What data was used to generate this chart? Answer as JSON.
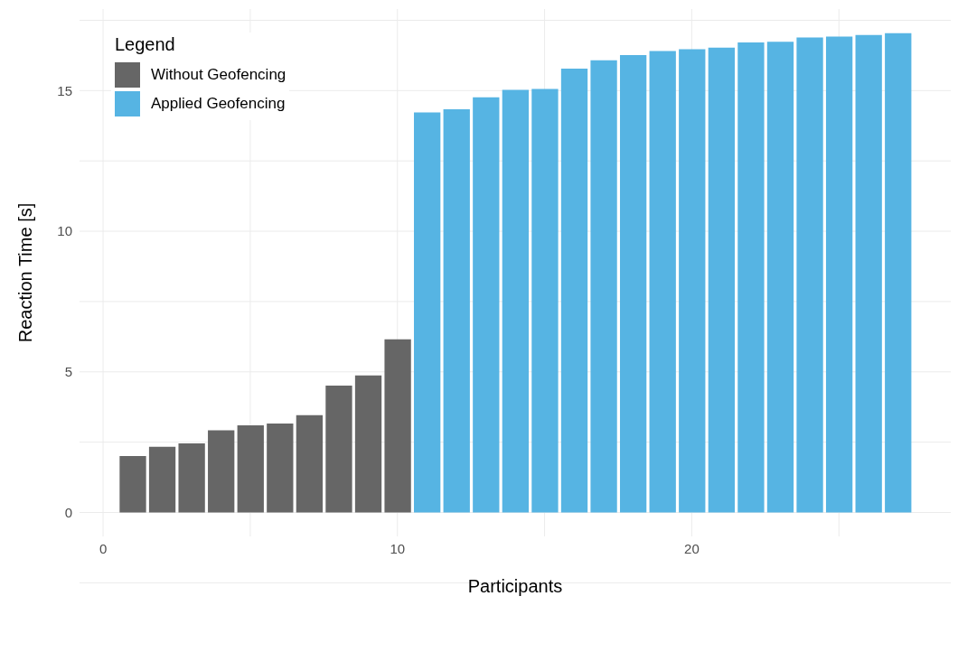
{
  "chart_data": {
    "type": "bar",
    "xlabel": "Participants",
    "ylabel": "Reaction Time [s]",
    "legend_title": "Legend",
    "legend": "top left",
    "grid": true,
    "xlim": [
      -0.8,
      28.8
    ],
    "xticks": [
      0,
      10,
      20
    ],
    "ylim": [
      -0.85,
      17.9
    ],
    "yticks": [
      0,
      5,
      10,
      15
    ],
    "series": [
      {
        "name": "Without Geofencing",
        "color": "#666666",
        "x": [
          1,
          2,
          3,
          4,
          5,
          6,
          7,
          8,
          9,
          10
        ],
        "values": [
          2.01,
          2.34,
          2.46,
          2.92,
          3.1,
          3.16,
          3.46,
          4.51,
          4.87,
          6.16
        ]
      },
      {
        "name": "Applied Geofencing",
        "color": "#56b4e3",
        "x": [
          11,
          12,
          13,
          14,
          15,
          16,
          17,
          18,
          19,
          20,
          21,
          22,
          23,
          24,
          25,
          26,
          27
        ],
        "values": [
          14.22,
          14.34,
          14.76,
          15.03,
          15.06,
          15.78,
          16.08,
          16.26,
          16.41,
          16.47,
          16.53,
          16.71,
          16.74,
          16.89,
          16.92,
          16.98,
          17.04
        ]
      }
    ]
  }
}
